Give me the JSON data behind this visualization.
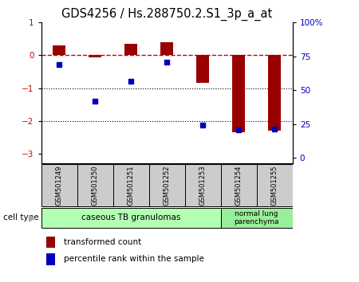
{
  "title": "GDS4256 / Hs.288750.2.S1_3p_a_at",
  "samples": [
    "GSM501249",
    "GSM501250",
    "GSM501251",
    "GSM501252",
    "GSM501253",
    "GSM501254",
    "GSM501255"
  ],
  "red_values": [
    0.3,
    -0.05,
    0.35,
    0.4,
    -0.85,
    -2.35,
    -2.3
  ],
  "blue_values_pct": [
    68,
    40,
    55,
    70,
    22,
    18,
    19
  ],
  "ylim_left": [
    -3.3,
    1.0
  ],
  "ylim_right": [
    -4.25,
    100
  ],
  "yticks_left": [
    1,
    0,
    -1,
    -2,
    -3
  ],
  "yticks_right": [
    0,
    25,
    50,
    75,
    100
  ],
  "group1_samples": [
    0,
    1,
    2,
    3,
    4
  ],
  "group2_samples": [
    5,
    6
  ],
  "group1_label": "caseous TB granulomas",
  "group2_label": "normal lung\nparenchyma",
  "group1_color": "#b3ffb3",
  "group2_color": "#99ee99",
  "bar_color": "#990000",
  "dot_color": "#0000bb",
  "background_color": "#ffffff",
  "title_fontsize": 10.5
}
